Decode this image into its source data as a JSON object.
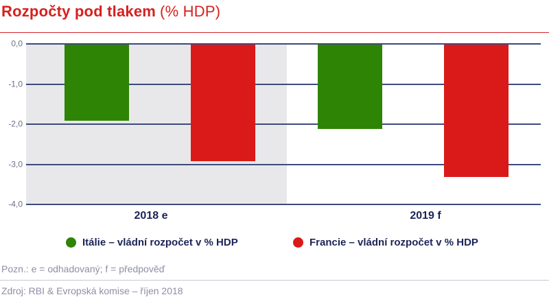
{
  "header": {
    "title_bold": "Rozpočty pod tlakem",
    "title_light": "(% HDP)"
  },
  "chart_data": {
    "type": "bar",
    "title": "Rozpočty pod tlakem (% HDP)",
    "categories": [
      "2018 e",
      "2019 f"
    ],
    "series": [
      {
        "id": "italie",
        "name": "Itálie – vládní rozpočet v % HDP",
        "color": "#2e8404",
        "values": [
          -1.9,
          -2.1
        ]
      },
      {
        "id": "francie",
        "name": "Francie – vládní rozpočet v % HDP",
        "color": "#da1a18",
        "values": [
          -2.9,
          -3.3
        ]
      },
      {
        "id": null,
        "name": null,
        "color": null,
        "values": null
      }
    ],
    "xlabel": "",
    "ylabel": "",
    "ylim": [
      -4.0,
      0.0
    ],
    "yticks": [
      "0,0",
      "-1,0",
      "-2,0",
      "-3,0",
      "-4,0"
    ],
    "grid": true,
    "legend_position": "bottom",
    "highlight_panel": {
      "category": "2018 e",
      "color": "#e8e8ea"
    }
  },
  "legend": {
    "items": [
      {
        "label": "Itálie – vládní rozpočet v % HDP",
        "color": "#2e8404"
      },
      {
        "label": "Francie – vládní rozpočet v % HDP",
        "color": "#da1a18"
      }
    ]
  },
  "footer": {
    "note": "Pozn.: e = odhadovaný; f = předpověď",
    "source": "Zdroj: RBI & Evropská komise – říjen 2018"
  },
  "colors": {
    "title_red": "#d6201f",
    "rule_red": "#d6232a",
    "gridline_navy": "#3d4a7b",
    "axis_text_navy": "#1b2356",
    "panel_gray": "#e8e8ea",
    "footer_gray": "#8d8fa4"
  }
}
